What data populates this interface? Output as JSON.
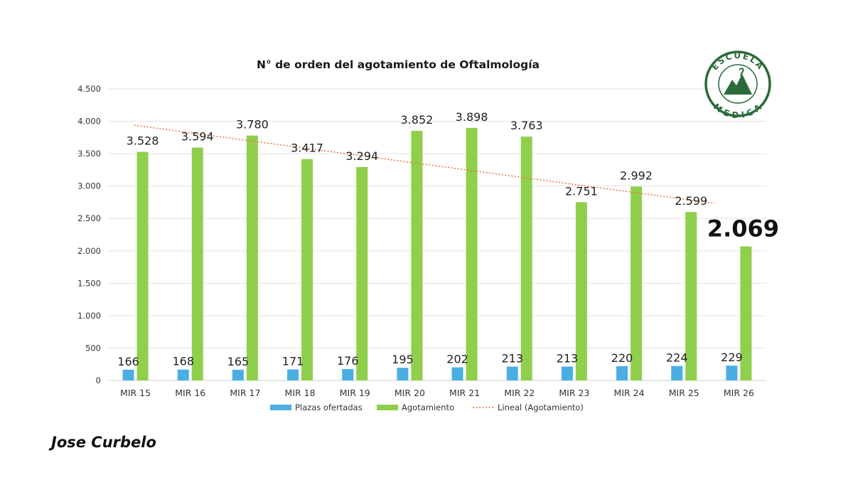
{
  "chart_data": {
    "type": "bar",
    "title": "N° de orden del agotamiento de Oftalmología",
    "categories": [
      "MIR 15",
      "MIR 16",
      "MIR 17",
      "MIR 18",
      "MIR 19",
      "MIR 20",
      "MIR 21",
      "MIR 22",
      "MIR 23",
      "MIR 24",
      "MIR 25",
      "MIR 26"
    ],
    "series": [
      {
        "name": "Plazas ofertadas",
        "color": "#4aaee3",
        "values": [
          166,
          168,
          165,
          171,
          176,
          195,
          202,
          213,
          213,
          220,
          224,
          229
        ],
        "labels": [
          "166",
          "168",
          "165",
          "171",
          "176",
          "195",
          "202",
          "213",
          "213",
          "220",
          "224",
          "229"
        ]
      },
      {
        "name": "Agotamiento",
        "color": "#8fcf4c",
        "values": [
          3528,
          3594,
          3780,
          3417,
          3294,
          3852,
          3898,
          3763,
          2751,
          2992,
          2599,
          2069
        ],
        "labels": [
          "3.528",
          "3.594",
          "3.780",
          "3.417",
          "3.294",
          "3.852",
          "3.898",
          "3.763",
          "2.751",
          "2.992",
          "2.599",
          "2.069"
        ]
      }
    ],
    "trendline": {
      "name": "Lineal (Agotamiento)",
      "color": "#e8733a",
      "of": "Agotamiento",
      "style": "dotted"
    },
    "ylim": [
      0,
      4500
    ],
    "yticks": [
      0,
      500,
      1000,
      1500,
      2000,
      2500,
      3000,
      3500,
      4000,
      4500
    ],
    "ytick_labels": [
      "0",
      "500",
      "1.000",
      "1.500",
      "2.000",
      "2.500",
      "3.000",
      "3.500",
      "4.000",
      "4.500"
    ],
    "grid": true,
    "legend": "bottom",
    "highlight_last_label": true
  },
  "logo": {
    "top_text": "ESCUELA",
    "bottom_text": "MEDICA",
    "color": "#2b6b3a"
  },
  "author": "Jose Curbelo"
}
